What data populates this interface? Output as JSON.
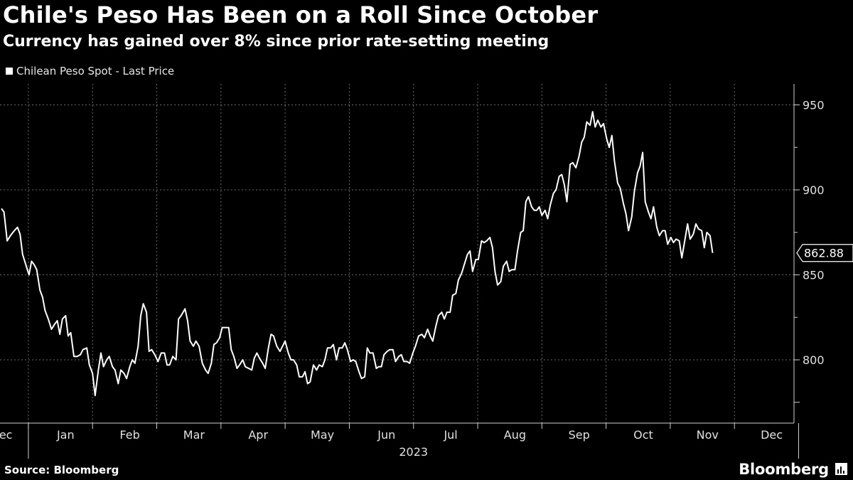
{
  "header": {
    "title": "Chile's Peso Has Been on a Roll Since October",
    "subtitle": "Currency has gained over 8% since prior rate-setting meeting"
  },
  "legend": {
    "label": "Chilean Peso Spot - Last Price"
  },
  "footer": {
    "source": "Source: Bloomberg",
    "brand": "Bloomberg"
  },
  "colors": {
    "background": "#000000",
    "line": "#ffffff",
    "grid": "#6a6a6a"
  },
  "chart_data": {
    "type": "line",
    "title": "Chile's Peso Has Been on a Roll Since October",
    "subtitle": "Currency has gained over 8% since prior rate-setting meeting",
    "xlabel": "2023",
    "ylabel": "",
    "ylim": [
      775,
      960
    ],
    "y_ticks": [
      800,
      850,
      900,
      950
    ],
    "y_tick_labels": [
      "800",
      "850",
      "900",
      "950"
    ],
    "x_domain": [
      0,
      12.6
    ],
    "x_ticks": [
      0,
      1,
      2,
      3,
      4,
      5,
      6,
      7,
      8,
      9,
      10,
      11,
      12
    ],
    "x_tick_labels": [
      "Dec",
      "Jan",
      "Feb",
      "Mar",
      "Apr",
      "May",
      "Jun",
      "Jul",
      "Aug",
      "Sep",
      "Oct",
      "Nov",
      "Dec"
    ],
    "year_label": "2023",
    "last_value_label": "862.88",
    "grid": true,
    "legend_position": "top-left",
    "series": [
      {
        "name": "Chilean Peso Spot - Last Price",
        "color": "#ffffff",
        "points": [
          [
            0.0,
            889
          ],
          [
            0.04,
            887
          ],
          [
            0.09,
            870
          ],
          [
            0.14,
            873
          ],
          [
            0.2,
            876
          ],
          [
            0.25,
            878
          ],
          [
            0.29,
            874
          ],
          [
            0.33,
            862
          ],
          [
            0.38,
            856
          ],
          [
            0.43,
            850
          ],
          [
            0.47,
            858
          ],
          [
            0.51,
            856
          ],
          [
            0.55,
            853
          ],
          [
            0.6,
            841
          ],
          [
            0.64,
            837
          ],
          [
            0.68,
            829
          ],
          [
            0.73,
            824
          ],
          [
            0.78,
            818
          ],
          [
            0.83,
            821
          ],
          [
            0.87,
            823
          ],
          [
            0.91,
            815
          ],
          [
            0.95,
            824
          ],
          [
            1.0,
            826
          ],
          [
            1.04,
            814
          ],
          [
            1.08,
            816
          ],
          [
            1.13,
            802
          ],
          [
            1.18,
            802
          ],
          [
            1.23,
            803
          ],
          [
            1.27,
            806
          ],
          [
            1.33,
            807
          ],
          [
            1.37,
            797
          ],
          [
            1.42,
            792
          ],
          [
            1.46,
            779
          ],
          [
            1.51,
            794
          ],
          [
            1.55,
            804
          ],
          [
            1.59,
            796
          ],
          [
            1.64,
            800
          ],
          [
            1.68,
            802
          ],
          [
            1.73,
            796
          ],
          [
            1.77,
            794
          ],
          [
            1.82,
            786
          ],
          [
            1.86,
            794
          ],
          [
            1.91,
            792
          ],
          [
            1.95,
            789
          ],
          [
            2.0,
            796
          ],
          [
            2.04,
            800
          ],
          [
            2.08,
            798
          ],
          [
            2.13,
            808
          ],
          [
            2.17,
            826
          ],
          [
            2.21,
            833
          ],
          [
            2.26,
            828
          ],
          [
            2.3,
            805
          ],
          [
            2.34,
            806
          ],
          [
            2.39,
            803
          ],
          [
            2.44,
            799
          ],
          [
            2.49,
            804
          ],
          [
            2.54,
            804
          ],
          [
            2.58,
            797
          ],
          [
            2.62,
            797
          ],
          [
            2.67,
            802
          ],
          [
            2.72,
            800
          ],
          [
            2.76,
            824
          ],
          [
            2.8,
            826
          ],
          [
            2.86,
            830
          ],
          [
            2.9,
            823
          ],
          [
            2.94,
            811
          ],
          [
            2.99,
            808
          ],
          [
            3.03,
            811
          ],
          [
            3.08,
            808
          ],
          [
            3.13,
            798
          ],
          [
            3.18,
            794
          ],
          [
            3.22,
            792
          ],
          [
            3.27,
            798
          ],
          [
            3.31,
            809
          ],
          [
            3.35,
            810
          ],
          [
            3.4,
            813
          ],
          [
            3.44,
            819
          ],
          [
            3.49,
            819
          ],
          [
            3.54,
            819
          ],
          [
            3.58,
            806
          ],
          [
            3.62,
            802
          ],
          [
            3.67,
            795
          ],
          [
            3.71,
            797
          ],
          [
            3.76,
            800
          ],
          [
            3.8,
            796
          ],
          [
            3.85,
            795
          ],
          [
            3.9,
            794
          ],
          [
            3.94,
            801
          ],
          [
            3.98,
            804
          ],
          [
            4.02,
            801
          ],
          [
            4.07,
            798
          ],
          [
            4.11,
            795
          ],
          [
            4.16,
            807
          ],
          [
            4.2,
            815
          ],
          [
            4.24,
            814
          ],
          [
            4.29,
            808
          ],
          [
            4.34,
            805
          ],
          [
            4.38,
            808
          ],
          [
            4.42,
            811
          ],
          [
            4.47,
            804
          ],
          [
            4.51,
            800
          ],
          [
            4.55,
            800
          ],
          [
            4.6,
            797
          ],
          [
            4.64,
            790
          ],
          [
            4.69,
            790
          ],
          [
            4.73,
            793
          ],
          [
            4.77,
            786
          ],
          [
            4.81,
            787
          ],
          [
            4.86,
            797
          ],
          [
            4.91,
            794
          ],
          [
            4.95,
            797
          ],
          [
            5.0,
            796
          ],
          [
            5.04,
            800
          ],
          [
            5.08,
            807
          ],
          [
            5.13,
            807
          ],
          [
            5.17,
            809
          ],
          [
            5.22,
            800
          ],
          [
            5.26,
            807
          ],
          [
            5.31,
            807
          ],
          [
            5.35,
            810
          ],
          [
            5.39,
            806
          ],
          [
            5.44,
            799
          ],
          [
            5.48,
            800
          ],
          [
            5.52,
            799
          ],
          [
            5.57,
            793
          ],
          [
            5.61,
            789
          ],
          [
            5.66,
            790
          ],
          [
            5.7,
            807
          ],
          [
            5.74,
            804
          ],
          [
            5.79,
            804
          ],
          [
            5.84,
            795
          ],
          [
            5.88,
            796
          ],
          [
            5.92,
            796
          ],
          [
            5.96,
            803
          ],
          [
            6.01,
            805
          ],
          [
            6.05,
            806
          ],
          [
            6.1,
            806
          ],
          [
            6.14,
            799
          ],
          [
            6.19,
            802
          ],
          [
            6.23,
            803
          ],
          [
            6.27,
            799
          ],
          [
            6.32,
            799
          ],
          [
            6.36,
            798
          ],
          [
            6.41,
            804
          ],
          [
            6.45,
            808
          ],
          [
            6.5,
            814
          ],
          [
            6.55,
            815
          ],
          [
            6.59,
            813
          ],
          [
            6.64,
            818
          ],
          [
            6.68,
            814
          ],
          [
            6.72,
            811
          ],
          [
            6.77,
            820
          ],
          [
            6.81,
            826
          ],
          [
            6.86,
            828
          ],
          [
            6.9,
            824
          ],
          [
            6.94,
            828
          ],
          [
            6.99,
            828
          ],
          [
            7.03,
            838
          ],
          [
            7.08,
            839
          ],
          [
            7.12,
            847
          ],
          [
            7.17,
            851
          ],
          [
            7.21,
            856
          ],
          [
            7.26,
            862
          ],
          [
            7.3,
            864
          ],
          [
            7.34,
            852
          ],
          [
            7.39,
            859
          ],
          [
            7.43,
            859
          ],
          [
            7.48,
            870
          ],
          [
            7.52,
            869
          ],
          [
            7.56,
            870
          ],
          [
            7.61,
            872
          ],
          [
            7.65,
            866
          ],
          [
            7.69,
            852
          ],
          [
            7.73,
            844
          ],
          [
            7.78,
            846
          ],
          [
            7.82,
            855
          ],
          [
            7.87,
            858
          ],
          [
            7.91,
            852
          ],
          [
            7.95,
            853
          ],
          [
            8.0,
            853
          ],
          [
            8.04,
            864
          ],
          [
            8.09,
            875
          ],
          [
            8.13,
            876
          ],
          [
            8.17,
            893
          ],
          [
            8.21,
            896
          ],
          [
            8.26,
            890
          ],
          [
            8.3,
            888
          ],
          [
            8.34,
            888
          ],
          [
            8.38,
            890
          ],
          [
            8.42,
            885
          ],
          [
            8.47,
            888
          ],
          [
            8.51,
            883
          ],
          [
            8.55,
            891
          ],
          [
            8.6,
            898
          ],
          [
            8.64,
            900
          ],
          [
            8.69,
            908
          ],
          [
            8.73,
            909
          ],
          [
            8.77,
            903
          ],
          [
            8.81,
            893
          ],
          [
            8.86,
            915
          ],
          [
            8.9,
            916
          ],
          [
            8.95,
            913
          ],
          [
            9.0,
            920
          ],
          [
            9.04,
            928
          ],
          [
            9.08,
            931
          ],
          [
            9.12,
            940
          ],
          [
            9.17,
            938
          ],
          [
            9.21,
            946
          ],
          [
            9.25,
            937
          ],
          [
            9.29,
            941
          ],
          [
            9.34,
            937
          ],
          [
            9.38,
            939
          ],
          [
            9.43,
            930
          ],
          [
            9.47,
            925
          ],
          [
            9.51,
            932
          ],
          [
            9.55,
            917
          ],
          [
            9.6,
            904
          ],
          [
            9.64,
            901
          ],
          [
            9.69,
            892
          ],
          [
            9.73,
            886
          ],
          [
            9.77,
            876
          ],
          [
            9.82,
            884
          ],
          [
            9.86,
            899
          ],
          [
            9.91,
            910
          ],
          [
            9.95,
            914
          ],
          [
            9.99,
            922
          ],
          [
            10.03,
            893
          ],
          [
            10.08,
            887
          ],
          [
            10.12,
            883
          ],
          [
            10.16,
            890
          ],
          [
            10.21,
            878
          ],
          [
            10.25,
            873
          ],
          [
            10.3,
            876
          ],
          [
            10.34,
            876
          ],
          [
            10.38,
            868
          ],
          [
            10.43,
            872
          ],
          [
            10.47,
            869
          ],
          [
            10.51,
            871
          ],
          [
            10.56,
            870
          ],
          [
            10.6,
            860
          ],
          [
            10.65,
            871
          ],
          [
            10.69,
            880
          ],
          [
            10.73,
            871
          ],
          [
            10.78,
            874
          ],
          [
            10.82,
            880
          ],
          [
            10.86,
            877
          ],
          [
            10.91,
            876
          ],
          [
            10.95,
            866
          ],
          [
            10.99,
            875
          ],
          [
            11.04,
            873
          ],
          [
            11.08,
            862.88
          ]
        ]
      }
    ]
  }
}
